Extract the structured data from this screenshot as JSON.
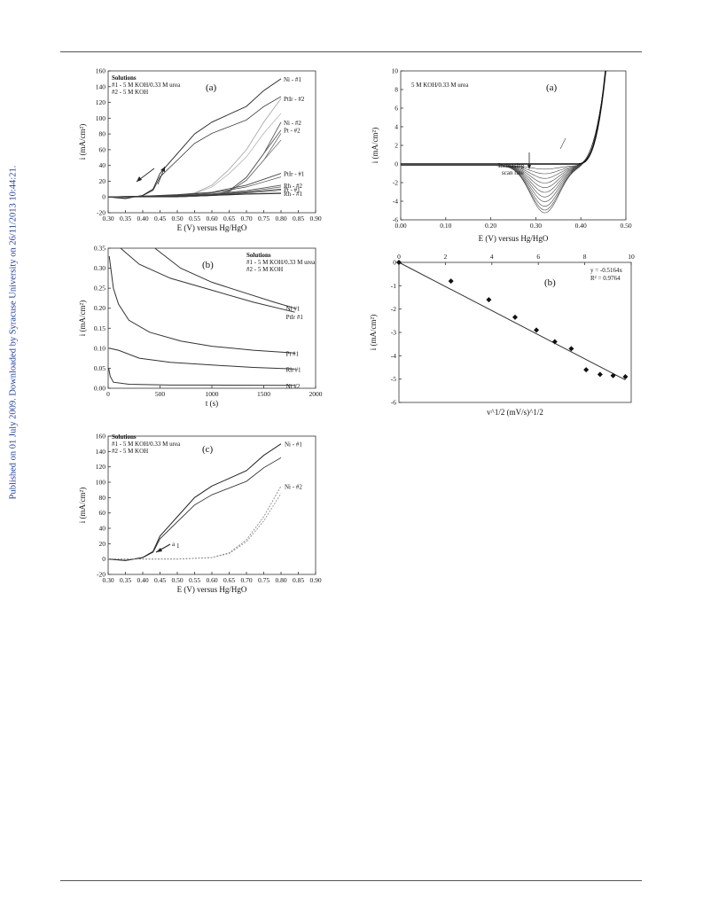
{
  "margin_note": "Published on 01 July 2009. Downloaded by Syracuse University on 26/11/2013 10:44:21.",
  "chart_data": [
    {
      "id": "fig-a-left",
      "type": "line",
      "panel_label": "(a)",
      "legend_text": [
        "Solutions",
        "#1 - 5 M KOH/0.33 M urea",
        "#2 - 5 M KOH"
      ],
      "xlabel": "E (V) versus Hg/HgO",
      "ylabel": "i (mA/cm²)",
      "xlim": [
        0.3,
        0.9
      ],
      "ylim": [
        -20,
        160
      ],
      "xticks": [
        "0.30",
        "0.35",
        "0.40",
        "0.45",
        "0.50",
        "0.55",
        "0.60",
        "0.65",
        "0.70",
        "0.75",
        "0.80",
        "0.85",
        "0.90"
      ],
      "yticks": [
        "-20",
        "0",
        "20",
        "40",
        "60",
        "80",
        "100",
        "120",
        "140",
        "160"
      ],
      "series": [
        {
          "name": "Ni - #1",
          "x": [
            0.3,
            0.35,
            0.4,
            0.43,
            0.45,
            0.48,
            0.5,
            0.55,
            0.6,
            0.65,
            0.7,
            0.75,
            0.8
          ],
          "y": [
            0,
            -2,
            2,
            10,
            30,
            45,
            55,
            80,
            95,
            105,
            115,
            135,
            150
          ]
        },
        {
          "name": "PtIr - #2",
          "x": [
            0.3,
            0.4,
            0.5,
            0.55,
            0.6,
            0.65,
            0.7,
            0.75,
            0.8
          ],
          "y": [
            0,
            0,
            2,
            5,
            15,
            35,
            60,
            95,
            125
          ]
        },
        {
          "name": "Ni - #2",
          "x": [
            0.3,
            0.4,
            0.5,
            0.6,
            0.65,
            0.7,
            0.75,
            0.8
          ],
          "y": [
            0,
            0,
            0,
            2,
            8,
            25,
            55,
            95
          ]
        },
        {
          "name": "Pt - #2",
          "x": [
            0.3,
            0.4,
            0.5,
            0.6,
            0.65,
            0.7,
            0.75,
            0.8
          ],
          "y": [
            0,
            0,
            0,
            2,
            8,
            25,
            55,
            85
          ]
        },
        {
          "name": "PtIr - #1",
          "x": [
            0.3,
            0.4,
            0.5,
            0.6,
            0.7,
            0.8
          ],
          "y": [
            0,
            1,
            3,
            6,
            15,
            30
          ]
        },
        {
          "name": "Rh - #2",
          "x": [
            0.3,
            0.4,
            0.5,
            0.6,
            0.7,
            0.8
          ],
          "y": [
            0,
            1,
            2,
            4,
            8,
            15
          ]
        },
        {
          "name": "Pt - #1",
          "x": [
            0.3,
            0.4,
            0.5,
            0.6,
            0.7,
            0.8
          ],
          "y": [
            0,
            1,
            2,
            3,
            6,
            10
          ]
        },
        {
          "name": "Rh - #1",
          "x": [
            0.3,
            0.4,
            0.5,
            0.6,
            0.7,
            0.8
          ],
          "y": [
            0,
            1,
            1,
            2,
            4,
            5
          ]
        }
      ]
    },
    {
      "id": "fig-b-left",
      "type": "line",
      "panel_label": "(b)",
      "legend_text": [
        "Solutions",
        "#1 - 5 M KOH/0.33 M urea",
        "#2 - 5 M KOH"
      ],
      "xlabel": "t (s)",
      "ylabel": "i (mA/cm²)",
      "xlim": [
        0,
        2000
      ],
      "ylim": [
        0,
        0.35
      ],
      "xticks": [
        "0",
        "500",
        "1000",
        "1500",
        "2000"
      ],
      "yticks": [
        "0.00",
        "0.05",
        "0.10",
        "0.15",
        "0.20",
        "0.25",
        "0.30",
        "0.35"
      ],
      "series": [
        {
          "name": "Ni #1",
          "x": [
            450,
            700,
            1000,
            1300,
            1600,
            1800
          ],
          "y": [
            0.35,
            0.3,
            0.265,
            0.24,
            0.215,
            0.2
          ]
        },
        {
          "name": "PtIr #1",
          "x": [
            120,
            300,
            600,
            1000,
            1400,
            1800
          ],
          "y": [
            0.35,
            0.31,
            0.275,
            0.245,
            0.215,
            0.19
          ]
        },
        {
          "name": "Pt #1",
          "x": [
            10,
            50,
            100,
            200,
            400,
            700,
            1000,
            1400,
            1800
          ],
          "y": [
            0.33,
            0.25,
            0.21,
            0.17,
            0.14,
            0.118,
            0.105,
            0.095,
            0.088
          ]
        },
        {
          "name": "Rh #1",
          "x": [
            10,
            100,
            300,
            600,
            1000,
            1400,
            1800
          ],
          "y": [
            0.1,
            0.095,
            0.075,
            0.065,
            0.058,
            0.052,
            0.048
          ]
        },
        {
          "name": "Ni #2",
          "x": [
            5,
            20,
            50,
            200,
            600,
            1000,
            1800
          ],
          "y": [
            0.05,
            0.03,
            0.015,
            0.01,
            0.008,
            0.008,
            0.007
          ]
        }
      ]
    },
    {
      "id": "fig-c-left",
      "type": "line",
      "panel_label": "(c)",
      "legend_text": [
        "Solutions",
        "#1 - 5 M KOH/0.33 M urea",
        "#2 - 5 M KOH"
      ],
      "annotation": "a",
      "annotation_sub": "1",
      "xlabel": "E (V) versus Hg/HgO",
      "ylabel": "i (mA/cm²)",
      "xlim": [
        0.3,
        0.9
      ],
      "ylim": [
        -20,
        160
      ],
      "xticks": [
        "0.30",
        "0.35",
        "0.40",
        "0.45",
        "0.50",
        "0.55",
        "0.60",
        "0.65",
        "0.70",
        "0.75",
        "0.80",
        "0.85",
        "0.90"
      ],
      "yticks": [
        "-20",
        "0",
        "20",
        "40",
        "60",
        "80",
        "100",
        "120",
        "140",
        "160"
      ],
      "series": [
        {
          "name": "Ni - #1",
          "x": [
            0.3,
            0.35,
            0.4,
            0.43,
            0.45,
            0.48,
            0.5,
            0.55,
            0.6,
            0.65,
            0.7,
            0.75,
            0.8
          ],
          "y": [
            0,
            -2,
            2,
            10,
            30,
            45,
            55,
            80,
            95,
            105,
            115,
            135,
            150
          ]
        },
        {
          "name": "Ni - #2",
          "x": [
            0.3,
            0.4,
            0.5,
            0.6,
            0.65,
            0.7,
            0.75,
            0.8
          ],
          "y": [
            0,
            0,
            0,
            2,
            8,
            25,
            55,
            95
          ]
        }
      ]
    },
    {
      "id": "fig-a-right",
      "type": "line",
      "panel_label": "(a)",
      "legend_text": [
        "5 M KOH/0.33 M urea"
      ],
      "annotation": [
        "Increasing",
        "scan rate"
      ],
      "xlabel": "E (V) versus Hg/HgO",
      "ylabel": "i (mA/cm²)",
      "xlim": [
        0.0,
        0.5
      ],
      "ylim": [
        -6,
        10
      ],
      "xticks": [
        "0.00",
        "0.10",
        "0.20",
        "0.30",
        "0.40",
        "0.50"
      ],
      "yticks": [
        "-6",
        "-4",
        "-2",
        "0",
        "2",
        "4",
        "6",
        "8",
        "10"
      ],
      "peak_minima": [
        -0.4,
        -0.9,
        -1.4,
        -1.9,
        -2.4,
        -2.9,
        -3.4,
        -3.9,
        -4.4,
        -4.8,
        -5.1
      ]
    },
    {
      "id": "fig-b-right",
      "type": "scatter",
      "panel_label": "(b)",
      "fit_equation": "y = -0.5164x",
      "r_squared": "R² = 0.9764",
      "xlabel": "v^1/2 (mV/s)^1/2",
      "ylabel": "i (mA/cm²)",
      "xlim": [
        0,
        10
      ],
      "ylim": [
        -6,
        0
      ],
      "xticks": [
        "0",
        "2",
        "4",
        "6",
        "8",
        "10"
      ],
      "yticks": [
        "-6",
        "-5",
        "-4",
        "-3",
        "-2",
        "-1",
        "0"
      ],
      "x": [
        0,
        2.24,
        3.87,
        5.0,
        5.92,
        6.71,
        7.42,
        8.06,
        8.66,
        9.22,
        9.75
      ],
      "y": [
        0,
        -0.8,
        -1.6,
        -2.35,
        -2.9,
        -3.4,
        -3.7,
        -4.6,
        -4.8,
        -4.85,
        -4.9
      ],
      "fit_line": {
        "slope": -0.5164
      }
    }
  ]
}
